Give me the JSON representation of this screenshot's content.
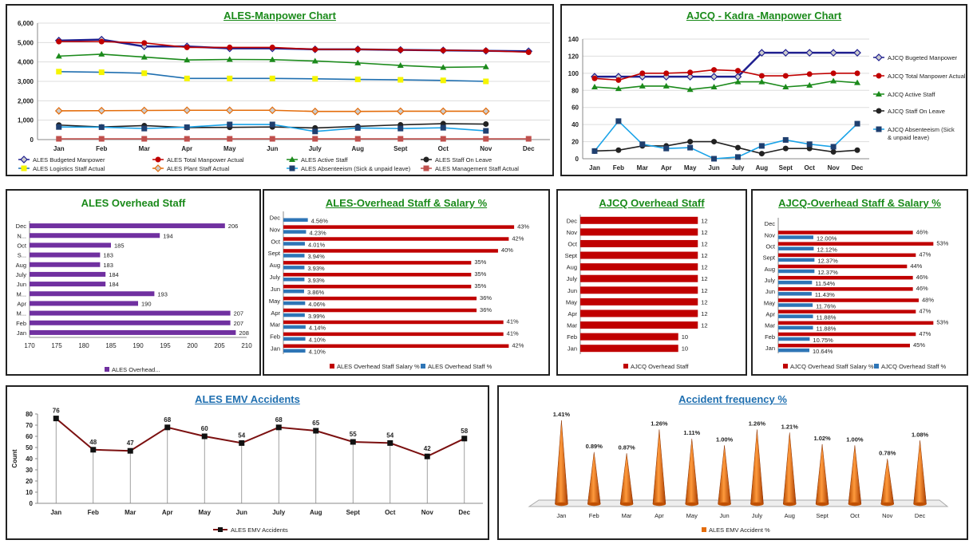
{
  "months": [
    "Jan",
    "Feb",
    "Mar",
    "Apr",
    "May",
    "Jun",
    "July",
    "Aug",
    "Sept",
    "Oct",
    "Nov",
    "Dec"
  ],
  "colors": {
    "purple": "#7030a0",
    "red": "#c00000",
    "darkred": "#7b1010",
    "blue": "#2e75b6",
    "navy": "#1f1f8f",
    "green": "#1b8a1b",
    "cyan": "#1aa3e8",
    "black": "#222",
    "yellow": "#f5f500",
    "orange": "#e46c0a",
    "dkorange": "#c0504d"
  },
  "chart_data": [
    {
      "id": "ales_manpower",
      "type": "line",
      "title": "ALES-Manpower Chart",
      "categories": [
        "Jan",
        "Feb",
        "Mar",
        "Apr",
        "May",
        "Jun",
        "July",
        "Aug",
        "Sept",
        "Oct",
        "Nov",
        "Dec"
      ],
      "ylim": [
        0,
        6000
      ],
      "yticks": [
        "0",
        "1,000",
        "2,000",
        "3,000",
        "4,000",
        "5,000",
        "6,000"
      ],
      "legend": "bottom",
      "series": [
        {
          "name": "ALES Budgeted Manpower",
          "color": "#1f1f8f",
          "marker": "diamond",
          "values": [
            5100,
            5150,
            4800,
            4800,
            4700,
            4700,
            4650,
            4650,
            4620,
            4600,
            4570,
            4550
          ]
        },
        {
          "name": "ALES Total Manpower Actual",
          "color": "#c00000",
          "marker": "circle",
          "values": [
            5050,
            5050,
            4980,
            4750,
            4750,
            4750,
            4650,
            4650,
            4620,
            4600,
            4580,
            4500
          ]
        },
        {
          "name": "ALES Active Staff",
          "color": "#1b8a1b",
          "marker": "triangle",
          "values": [
            4300,
            4400,
            4250,
            4100,
            4130,
            4120,
            4050,
            3950,
            3820,
            3720,
            3750,
            null
          ]
        },
        {
          "name": "ALES Staff On Leave",
          "color": "#222",
          "marker": "circle",
          "values": [
            750,
            650,
            720,
            620,
            630,
            650,
            600,
            680,
            760,
            820,
            800,
            null
          ]
        },
        {
          "name": "ALES Logistics Staff Actual",
          "color": "#1f6fb0",
          "marker": "square_yellow",
          "values": [
            3500,
            3470,
            3420,
            3150,
            3150,
            3150,
            3130,
            3100,
            3080,
            3050,
            3000,
            null
          ]
        },
        {
          "name": "ALES Plant Staff Actual",
          "color": "#e46c0a",
          "marker": "diamond",
          "values": [
            1480,
            1490,
            1500,
            1510,
            1510,
            1510,
            1450,
            1450,
            1460,
            1460,
            1460,
            null
          ]
        },
        {
          "name": "ALES Absenteeism (Sick & unpaid leave)",
          "color": "#1aa3e8",
          "marker": "square",
          "values": [
            650,
            640,
            570,
            640,
            780,
            780,
            420,
            600,
            570,
            610,
            450,
            null
          ]
        },
        {
          "name": "ALES Management Staff Actual",
          "color": "#c0504d",
          "marker": "square",
          "values": [
            40,
            40,
            40,
            40,
            40,
            40,
            40,
            40,
            40,
            40,
            40,
            40
          ]
        }
      ]
    },
    {
      "id": "ajcq_manpower",
      "type": "line",
      "title": "AJCQ - Kadra -Manpower Chart",
      "categories": [
        "Jan",
        "Feb",
        "Mar",
        "Apr",
        "May",
        "Jun",
        "July",
        "Aug",
        "Sept",
        "Oct",
        "Nov",
        "Dec"
      ],
      "ylim": [
        0,
        140
      ],
      "yticks": [
        "0",
        "20",
        "40",
        "60",
        "80",
        "100",
        "120",
        "140"
      ],
      "legend": "right",
      "series": [
        {
          "name": "AJCQ Bugeted Manpower",
          "color": "#1f1f8f",
          "marker": "diamond",
          "values": [
            96,
            96,
            96,
            96,
            96,
            96,
            96,
            124,
            124,
            124,
            124,
            124
          ]
        },
        {
          "name": "AJCQ Total Manpower Actual",
          "color": "#c00000",
          "marker": "circle",
          "values": [
            94,
            92,
            100,
            100,
            101,
            104,
            103,
            97,
            97,
            99,
            100,
            100
          ]
        },
        {
          "name": "AJCQ Active Staff",
          "color": "#1b8a1b",
          "marker": "triangle",
          "values": [
            84,
            82,
            85,
            85,
            81,
            84,
            90,
            90,
            84,
            86,
            91,
            89
          ]
        },
        {
          "name": "AJCQ Staff On Leave",
          "color": "#222",
          "marker": "circle",
          "values": [
            9,
            10,
            15,
            15,
            20,
            20,
            13,
            6,
            12,
            12,
            8,
            10
          ]
        },
        {
          "name": "AJCQ Absenteeism (Sick & unpaid leave)",
          "color": "#1aa3e8",
          "marker": "square",
          "values": [
            9,
            44,
            17,
            12,
            13,
            0,
            2,
            15,
            22,
            17,
            14,
            41
          ]
        }
      ]
    },
    {
      "id": "ales_overhead",
      "type": "bar",
      "orientation": "horizontal",
      "title": "ALES Overhead Staff",
      "categories": [
        "Jan",
        "Feb",
        "M...",
        "Apr",
        "M...",
        "Jun",
        "July",
        "Aug",
        "S...",
        "Oct",
        "N...",
        "Dec"
      ],
      "values": [
        208,
        207,
        207,
        190,
        193,
        184,
        184,
        183,
        183,
        185,
        194,
        206
      ],
      "xlim": [
        170,
        210
      ],
      "xticks": [
        "170",
        "175",
        "180",
        "185",
        "190",
        "195",
        "200",
        "205",
        "210"
      ],
      "legend": "ALES Overhead...",
      "color": "#7030a0"
    },
    {
      "id": "ales_overhead_pct",
      "type": "bar",
      "orientation": "horizontal",
      "title": "ALES-Overhead Staff & Salary %",
      "categories": [
        "Jan",
        "Feb",
        "Mar",
        "Apr",
        "May",
        "Jun",
        "July",
        "Aug",
        "Sept",
        "Oct",
        "Nov",
        "Dec"
      ],
      "series": [
        {
          "name": "ALES Overhead Staff Salary %",
          "color": "#c00000",
          "values": [
            42,
            41,
            41,
            36,
            36,
            35,
            35,
            35,
            40,
            42,
            43,
            null
          ],
          "labels": [
            "42%",
            "41%",
            "41%",
            "36%",
            "36%",
            "35%",
            "35%",
            "35%",
            "40%",
            "42%",
            "43%",
            ""
          ]
        },
        {
          "name": "ALES Overhead Staff %",
          "color": "#2e75b6",
          "values": [
            4.1,
            4.1,
            4.14,
            3.99,
            4.06,
            3.86,
            3.93,
            3.93,
            3.94,
            4.01,
            4.23,
            4.56
          ],
          "labels": [
            "4.10%",
            "4.10%",
            "4.14%",
            "3.99%",
            "4.06%",
            "3.86%",
            "3.93%",
            "3.93%",
            "3.94%",
            "4.01%",
            "4.23%",
            "4.56%"
          ]
        }
      ]
    },
    {
      "id": "ajcq_overhead",
      "type": "bar",
      "orientation": "horizontal",
      "title": "AJCQ Overhead Staff",
      "categories": [
        "Jan",
        "Feb",
        "Mar",
        "Apr",
        "May",
        "Jun",
        "July",
        "Aug",
        "Sept",
        "Oct",
        "Nov",
        "Dec"
      ],
      "values": [
        10,
        10,
        12,
        12,
        12,
        12,
        12,
        12,
        12,
        12,
        12,
        12
      ],
      "legend": "AJCQ Overhead Staff",
      "color": "#c00000"
    },
    {
      "id": "ajcq_overhead_pct",
      "type": "bar",
      "orientation": "horizontal",
      "title": "AJCQ-Overhead Staff & Salary %",
      "categories": [
        "Jan",
        "Feb",
        "Mar",
        "Apr",
        "May",
        "Jun",
        "July",
        "Aug",
        "Sept",
        "Oct",
        "Nov",
        "Dec"
      ],
      "series": [
        {
          "name": "AJCQ Overhead Staff Salary %",
          "color": "#c00000",
          "values": [
            45,
            47,
            53,
            47,
            48,
            46,
            46,
            44,
            47,
            53,
            46,
            null
          ],
          "labels": [
            "45%",
            "47%",
            "53%",
            "47%",
            "48%",
            "46%",
            "46%",
            "44%",
            "47%",
            "53%",
            "46%",
            ""
          ]
        },
        {
          "name": "AJCQ Overhead Staff %",
          "color": "#2e75b6",
          "values": [
            10.64,
            10.75,
            11.88,
            11.88,
            11.76,
            11.43,
            11.54,
            12.37,
            12.37,
            12.12,
            12.0,
            null
          ],
          "labels": [
            "10.64%",
            "10.75%",
            "11.88%",
            "11.88%",
            "11.76%",
            "11.43%",
            "11.54%",
            "12.37%",
            "12.37%",
            "12.12%",
            "12.00%",
            ""
          ]
        }
      ]
    },
    {
      "id": "ales_emv",
      "type": "line",
      "title": "ALES EMV Accidents",
      "categories": [
        "Jan",
        "Feb",
        "Mar",
        "Apr",
        "May",
        "Jun",
        "July",
        "Aug",
        "Sept",
        "Oct",
        "Nov",
        "Dec"
      ],
      "values": [
        76,
        48,
        47,
        68,
        60,
        54,
        68,
        65,
        55,
        54,
        42,
        58
      ],
      "ylim": [
        0,
        80
      ],
      "yticks": [
        "0",
        "10",
        "20",
        "30",
        "40",
        "50",
        "60",
        "70",
        "80"
      ],
      "ylabel": "Count",
      "legend": "ALES EMV Accidents",
      "color": "#7b1010"
    },
    {
      "id": "accident_freq",
      "type": "bar",
      "shape": "cone",
      "title": "Accident frequency %",
      "categories": [
        "Jan",
        "Feb",
        "Mar",
        "Apr",
        "May",
        "Jun",
        "July",
        "Aug",
        "Sept",
        "Oct",
        "Nov",
        "Dec"
      ],
      "values": [
        1.41,
        0.89,
        0.87,
        1.26,
        1.11,
        1.0,
        1.26,
        1.21,
        1.02,
        1.0,
        0.78,
        1.08
      ],
      "labels": [
        "1.41%",
        "0.89%",
        "0.87%",
        "1.26%",
        "1.11%",
        "1.00%",
        "1.26%",
        "1.21%",
        "1.02%",
        "1.00%",
        "0.78%",
        "1.08%"
      ],
      "legend": "ALES EMV Accident %",
      "color": "#e46c0a"
    }
  ]
}
